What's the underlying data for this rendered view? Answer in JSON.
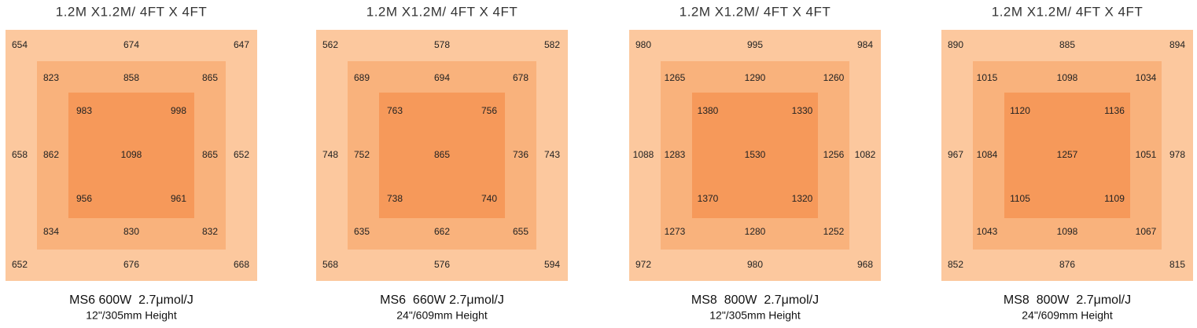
{
  "panels": [
    {
      "title": "1.2M X1.2M/ 4FT X 4FT",
      "outer": [
        654,
        674,
        647,
        658,
        652,
        652,
        676,
        668
      ],
      "middle": [
        823,
        858,
        865,
        862,
        865,
        834,
        830,
        832
      ],
      "inner": [
        983,
        998,
        956,
        961
      ],
      "center": 1098,
      "model": "MS6 600W  2.7μmol/J",
      "height": "12\"/305mm Height"
    },
    {
      "title": "1.2M X1.2M/ 4FT X 4FT",
      "outer": [
        562,
        578,
        582,
        748,
        743,
        568,
        576,
        594
      ],
      "middle": [
        689,
        694,
        678,
        752,
        736,
        635,
        662,
        655
      ],
      "inner": [
        763,
        756,
        738,
        740
      ],
      "center": 865,
      "model": "MS6  660W 2.7μmol/J",
      "height": "24\"/609mm Height"
    },
    {
      "title": "1.2M X1.2M/ 4FT X 4FT",
      "outer": [
        980,
        995,
        984,
        1088,
        1082,
        972,
        980,
        968
      ],
      "middle": [
        1265,
        1290,
        1260,
        1283,
        1256,
        1273,
        1280,
        1252
      ],
      "inner": [
        1380,
        1330,
        1370,
        1320
      ],
      "center": 1530,
      "model": "MS8  800W  2.7μmol/J",
      "height": "12\"/305mm Height"
    },
    {
      "title": "1.2M X1.2M/ 4FT X 4FT",
      "outer": [
        890,
        885,
        894,
        967,
        978,
        852,
        876,
        815
      ],
      "middle": [
        1015,
        1098,
        1034,
        1084,
        1051,
        1043,
        1098,
        1067
      ],
      "inner": [
        1120,
        1136,
        1105,
        1109
      ],
      "center": 1257,
      "model": "MS8  800W  2.7μmol/J",
      "height": "24\"/609mm Height"
    }
  ]
}
